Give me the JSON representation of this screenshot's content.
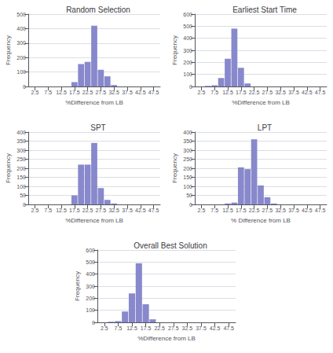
{
  "chart_data": [
    {
      "type": "bar",
      "title": "Random Selection",
      "xlabel": "%Difference from LB",
      "ylabel": "Frequency",
      "x": [
        2.5,
        5.0,
        7.5,
        10.0,
        12.5,
        15.0,
        17.5,
        20.0,
        22.5,
        25.0,
        27.5,
        30.0,
        32.5,
        35.0,
        37.5,
        40.0,
        42.5,
        45.0,
        47.5
      ],
      "values": [
        0,
        0,
        0,
        0,
        0,
        0,
        30,
        155,
        170,
        420,
        115,
        70,
        10,
        0,
        0,
        0,
        0,
        0,
        0
      ],
      "color": "#8888cc",
      "xlim": [
        0,
        50
      ],
      "xticks": [
        2.5,
        7.5,
        12.5,
        17.5,
        22.5,
        27.5,
        32.5,
        37.5,
        42.5,
        47.5
      ],
      "ylim": [
        0,
        500
      ],
      "yticks": [
        0,
        100,
        200,
        300,
        400,
        500
      ],
      "grid": true
    },
    {
      "type": "bar",
      "title": "Earliest Start Time",
      "xlabel": "%Difference from LB",
      "ylabel": "Frequency",
      "x": [
        2.5,
        5.0,
        7.5,
        10.0,
        12.5,
        15.0,
        17.5,
        20.0,
        22.5,
        25.0,
        27.5,
        30.0,
        32.5,
        35.0,
        37.5,
        40.0,
        42.5,
        45.0,
        47.5
      ],
      "values": [
        0,
        5,
        10,
        70,
        230,
        480,
        155,
        25,
        0,
        0,
        0,
        0,
        0,
        0,
        0,
        0,
        0,
        0,
        0
      ],
      "color": "#8888cc",
      "xlim": [
        0,
        50
      ],
      "xticks": [
        2.5,
        7.5,
        12.5,
        17.5,
        22.5,
        27.5,
        32.5,
        37.5,
        42.5,
        47.5
      ],
      "ylim": [
        0,
        600
      ],
      "yticks": [
        0,
        100,
        200,
        300,
        400,
        500,
        600
      ],
      "grid": true
    },
    {
      "type": "bar",
      "title": "SPT",
      "xlabel": "%Difference from LB",
      "ylabel": "Frequency",
      "x": [
        2.5,
        5.0,
        7.5,
        10.0,
        12.5,
        15.0,
        17.5,
        20.0,
        22.5,
        25.0,
        27.5,
        30.0,
        32.5,
        35.0,
        37.5,
        40.0,
        42.5,
        45.0,
        47.5
      ],
      "values": [
        0,
        0,
        0,
        0,
        0,
        0,
        50,
        220,
        220,
        340,
        90,
        25,
        5,
        0,
        0,
        0,
        0,
        0,
        0
      ],
      "color": "#8888cc",
      "xlim": [
        0,
        50
      ],
      "xticks": [
        2.5,
        7.5,
        12.5,
        17.5,
        22.5,
        27.5,
        32.5,
        37.5,
        42.5,
        47.5
      ],
      "ylim": [
        0,
        400
      ],
      "yticks": [
        0,
        50,
        100,
        150,
        200,
        250,
        300,
        350,
        400
      ],
      "grid": true
    },
    {
      "type": "bar",
      "title": "LPT",
      "xlabel": "% Difference from LB",
      "ylabel": "Frequency",
      "x": [
        2.5,
        5.0,
        7.5,
        10.0,
        12.5,
        15.0,
        17.5,
        20.0,
        22.5,
        25.0,
        27.5,
        30.0,
        32.5,
        35.0,
        37.5,
        40.0,
        42.5,
        45.0,
        47.5
      ],
      "values": [
        0,
        0,
        0,
        0,
        5,
        10,
        205,
        195,
        360,
        105,
        40,
        5,
        0,
        0,
        0,
        0,
        0,
        0,
        0
      ],
      "color": "#8888cc",
      "xlim": [
        0,
        50
      ],
      "xticks": [
        2.5,
        7.5,
        12.5,
        17.5,
        22.5,
        27.5,
        32.5,
        37.5,
        42.5,
        47.5
      ],
      "ylim": [
        0,
        400
      ],
      "yticks": [
        0,
        50,
        100,
        150,
        200,
        250,
        300,
        350,
        400
      ],
      "grid": true
    },
    {
      "type": "bar",
      "title": "Overall Best Solution",
      "xlabel": "%Difference from LB",
      "ylabel": "Frequency",
      "x": [
        2.5,
        5.0,
        7.5,
        10.0,
        12.5,
        15.0,
        17.5,
        20.0,
        22.5,
        25.0,
        27.5,
        30.0,
        32.5,
        35.0,
        37.5,
        40.0,
        42.5,
        45.0,
        47.5
      ],
      "values": [
        0,
        5,
        10,
        90,
        240,
        490,
        150,
        25,
        0,
        0,
        0,
        0,
        0,
        0,
        0,
        0,
        0,
        0,
        0
      ],
      "color": "#8888cc",
      "xlim": [
        0,
        50
      ],
      "xticks": [
        2.5,
        7.5,
        12.5,
        17.5,
        22.5,
        27.5,
        32.5,
        37.5,
        42.5,
        47.5
      ],
      "ylim": [
        0,
        600
      ],
      "yticks": [
        0,
        100,
        200,
        300,
        400,
        500,
        600
      ],
      "grid": true
    }
  ]
}
